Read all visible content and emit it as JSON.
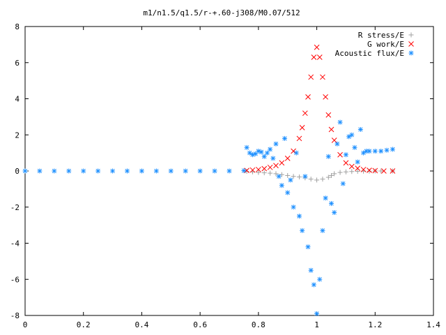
{
  "chart_data": {
    "type": "scatter",
    "title": "m1/n1.5/q1.5/r-+.60-j308/M0.07/512",
    "xlabel": "",
    "ylabel": "",
    "xlim": [
      0,
      1.4
    ],
    "ylim": [
      -8,
      8
    ],
    "x_ticks": [
      0,
      0.2,
      0.4,
      0.6,
      0.8,
      1,
      1.2,
      1.4
    ],
    "x_tick_labels": [
      "0",
      "0.2",
      "0.4",
      "0.6",
      "0.8",
      "1",
      "1.2",
      "1.4"
    ],
    "y_ticks": [
      -8,
      -6,
      -4,
      -2,
      0,
      2,
      4,
      6,
      8
    ],
    "y_tick_labels": [
      "-8",
      "-6",
      "-4",
      "-2",
      "0",
      "2",
      "4",
      "6",
      "8"
    ],
    "grid": false,
    "legend_position": "top-right",
    "series": [
      {
        "name": "R stress/E",
        "marker": "plus",
        "color": "#a0a0a0",
        "points": [
          [
            0.76,
            -0.02
          ],
          [
            0.78,
            -0.05
          ],
          [
            0.8,
            -0.08
          ],
          [
            0.82,
            -0.1
          ],
          [
            0.84,
            -0.12
          ],
          [
            0.86,
            -0.15
          ],
          [
            0.88,
            -0.2
          ],
          [
            0.9,
            -0.25
          ],
          [
            0.92,
            -0.3
          ],
          [
            0.94,
            -0.33
          ],
          [
            0.96,
            -0.38
          ],
          [
            0.98,
            -0.45
          ],
          [
            1.0,
            -0.5
          ],
          [
            1.02,
            -0.45
          ],
          [
            1.04,
            -0.35
          ],
          [
            1.05,
            -0.25
          ],
          [
            1.06,
            -0.15
          ],
          [
            1.08,
            -0.08
          ],
          [
            1.1,
            -0.05
          ],
          [
            1.12,
            -0.03
          ],
          [
            1.14,
            -0.02
          ],
          [
            1.16,
            -0.01
          ],
          [
            1.18,
            -0.01
          ],
          [
            1.2,
            0.0
          ],
          [
            1.22,
            0.0
          ],
          [
            1.26,
            0.0
          ]
        ]
      },
      {
        "name": "G work/E",
        "marker": "cross",
        "color": "#ff0000",
        "points": [
          [
            0.76,
            0.03
          ],
          [
            0.78,
            0.05
          ],
          [
            0.8,
            0.08
          ],
          [
            0.82,
            0.13
          ],
          [
            0.84,
            0.2
          ],
          [
            0.86,
            0.3
          ],
          [
            0.88,
            0.45
          ],
          [
            0.9,
            0.7
          ],
          [
            0.92,
            1.1
          ],
          [
            0.94,
            1.8
          ],
          [
            0.95,
            2.4
          ],
          [
            0.96,
            3.2
          ],
          [
            0.97,
            4.1
          ],
          [
            0.98,
            5.2
          ],
          [
            0.99,
            6.3
          ],
          [
            1.0,
            6.85
          ],
          [
            1.01,
            6.3
          ],
          [
            1.02,
            5.2
          ],
          [
            1.03,
            4.1
          ],
          [
            1.04,
            3.1
          ],
          [
            1.05,
            2.3
          ],
          [
            1.06,
            1.7
          ],
          [
            1.08,
            0.9
          ],
          [
            1.1,
            0.45
          ],
          [
            1.12,
            0.25
          ],
          [
            1.14,
            0.15
          ],
          [
            1.16,
            0.08
          ],
          [
            1.18,
            0.04
          ],
          [
            1.2,
            0.02
          ],
          [
            1.23,
            0.0
          ],
          [
            1.26,
            0.0
          ]
        ]
      },
      {
        "name": "Acoustic flux/E",
        "marker": "star",
        "color": "#1e90ff",
        "points": [
          [
            0.0,
            0.0
          ],
          [
            0.05,
            0.0
          ],
          [
            0.1,
            0.0
          ],
          [
            0.15,
            0.0
          ],
          [
            0.2,
            0.0
          ],
          [
            0.25,
            0.0
          ],
          [
            0.3,
            0.0
          ],
          [
            0.35,
            0.0
          ],
          [
            0.4,
            0.0
          ],
          [
            0.45,
            0.0
          ],
          [
            0.5,
            0.0
          ],
          [
            0.55,
            0.0
          ],
          [
            0.6,
            0.0
          ],
          [
            0.65,
            0.0
          ],
          [
            0.7,
            0.0
          ],
          [
            0.75,
            0.02
          ],
          [
            0.76,
            1.3
          ],
          [
            0.77,
            1.0
          ],
          [
            0.78,
            0.9
          ],
          [
            0.79,
            0.95
          ],
          [
            0.8,
            1.1
          ],
          [
            0.81,
            1.05
          ],
          [
            0.82,
            0.8
          ],
          [
            0.83,
            1.0
          ],
          [
            0.84,
            1.2
          ],
          [
            0.85,
            0.7
          ],
          [
            0.86,
            1.5
          ],
          [
            0.87,
            -0.3
          ],
          [
            0.88,
            -0.8
          ],
          [
            0.89,
            1.8
          ],
          [
            0.9,
            -1.2
          ],
          [
            0.91,
            -0.5
          ],
          [
            0.92,
            -2.0
          ],
          [
            0.93,
            1.0
          ],
          [
            0.94,
            -2.5
          ],
          [
            0.95,
            -3.3
          ],
          [
            0.96,
            -0.3
          ],
          [
            0.97,
            -4.2
          ],
          [
            0.98,
            -5.5
          ],
          [
            0.99,
            -6.3
          ],
          [
            1.0,
            -7.9
          ],
          [
            1.01,
            -6.0
          ],
          [
            1.02,
            -3.3
          ],
          [
            1.03,
            -1.5
          ],
          [
            1.04,
            0.8
          ],
          [
            1.05,
            -1.8
          ],
          [
            1.06,
            -2.3
          ],
          [
            1.07,
            1.5
          ],
          [
            1.08,
            2.7
          ],
          [
            1.09,
            -0.7
          ],
          [
            1.1,
            0.9
          ],
          [
            1.11,
            1.9
          ],
          [
            1.12,
            2.0
          ],
          [
            1.13,
            1.3
          ],
          [
            1.14,
            0.5
          ],
          [
            1.15,
            2.3
          ],
          [
            1.16,
            1.0
          ],
          [
            1.17,
            1.1
          ],
          [
            1.18,
            1.1
          ],
          [
            1.2,
            1.1
          ],
          [
            1.22,
            1.1
          ],
          [
            1.24,
            1.15
          ],
          [
            1.26,
            1.2
          ]
        ]
      }
    ]
  }
}
